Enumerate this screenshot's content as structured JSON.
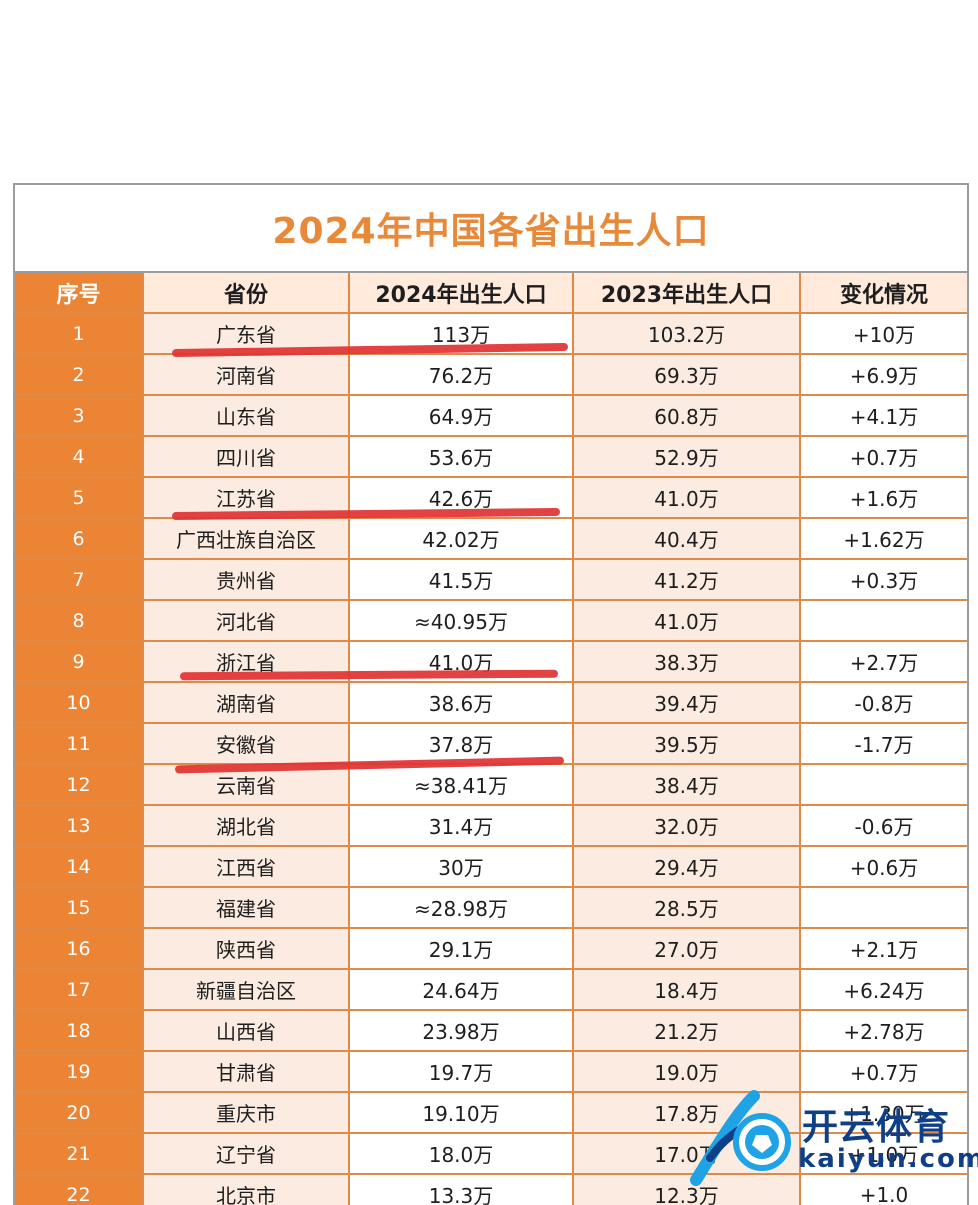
{
  "title": "2024年中国各省出生人口",
  "headers": [
    "序号",
    "省份",
    "2024年出生人口",
    "2023年出生人口",
    "变化情况"
  ],
  "rows": [
    {
      "no": "1",
      "province": "广东省",
      "births_2024": "113万",
      "births_2023": "103.2万",
      "change": "+10万"
    },
    {
      "no": "2",
      "province": "河南省",
      "births_2024": "76.2万",
      "births_2023": "69.3万",
      "change": "+6.9万"
    },
    {
      "no": "3",
      "province": "山东省",
      "births_2024": "64.9万",
      "births_2023": "60.8万",
      "change": "+4.1万"
    },
    {
      "no": "4",
      "province": "四川省",
      "births_2024": "53.6万",
      "births_2023": "52.9万",
      "change": "+0.7万"
    },
    {
      "no": "5",
      "province": "江苏省",
      "births_2024": "42.6万",
      "births_2023": "41.0万",
      "change": "+1.6万"
    },
    {
      "no": "6",
      "province": "广西壮族自治区",
      "births_2024": "42.02万",
      "births_2023": "40.4万",
      "change": "+1.62万"
    },
    {
      "no": "7",
      "province": "贵州省",
      "births_2024": "41.5万",
      "births_2023": "41.2万",
      "change": "+0.3万"
    },
    {
      "no": "8",
      "province": "河北省",
      "births_2024": "≈40.95万",
      "births_2023": "41.0万",
      "change": ""
    },
    {
      "no": "9",
      "province": "浙江省",
      "births_2024": "41.0万",
      "births_2023": "38.3万",
      "change": "+2.7万"
    },
    {
      "no": "10",
      "province": "湖南省",
      "births_2024": "38.6万",
      "births_2023": "39.4万",
      "change": "-0.8万"
    },
    {
      "no": "11",
      "province": "安徽省",
      "births_2024": "37.8万",
      "births_2023": "39.5万",
      "change": "-1.7万"
    },
    {
      "no": "12",
      "province": "云南省",
      "births_2024": "≈38.41万",
      "births_2023": "38.4万",
      "change": ""
    },
    {
      "no": "13",
      "province": "湖北省",
      "births_2024": "31.4万",
      "births_2023": "32.0万",
      "change": "-0.6万"
    },
    {
      "no": "14",
      "province": "江西省",
      "births_2024": "30万",
      "births_2023": "29.4万",
      "change": "+0.6万"
    },
    {
      "no": "15",
      "province": "福建省",
      "births_2024": "≈28.98万",
      "births_2023": "28.5万",
      "change": ""
    },
    {
      "no": "16",
      "province": "陕西省",
      "births_2024": "29.1万",
      "births_2023": "27.0万",
      "change": "+2.1万"
    },
    {
      "no": "17",
      "province": "新疆自治区",
      "births_2024": "24.64万",
      "births_2023": "18.4万",
      "change": "+6.24万"
    },
    {
      "no": "18",
      "province": "山西省",
      "births_2024": "23.98万",
      "births_2023": "21.2万",
      "change": "+2.78万"
    },
    {
      "no": "19",
      "province": "甘肃省",
      "births_2024": "19.7万",
      "births_2023": "19.0万",
      "change": "+0.7万"
    },
    {
      "no": "20",
      "province": "重庆市",
      "births_2024": "19.10万",
      "births_2023": "17.8万",
      "change": "+1.30万"
    },
    {
      "no": "21",
      "province": "辽宁省",
      "births_2024": "18.0万",
      "births_2023": "17.0万",
      "change": "+1.0万"
    },
    {
      "no": "22",
      "province": "北京市",
      "births_2024": "13.3万",
      "births_2023": "12.3万",
      "change": "+1.0"
    }
  ],
  "strike_color": "#e03434",
  "struck_rows": [
    "1",
    "5",
    "9",
    "11"
  ],
  "watermark": {
    "name": "开云体育",
    "site": "kaiyun.com"
  }
}
